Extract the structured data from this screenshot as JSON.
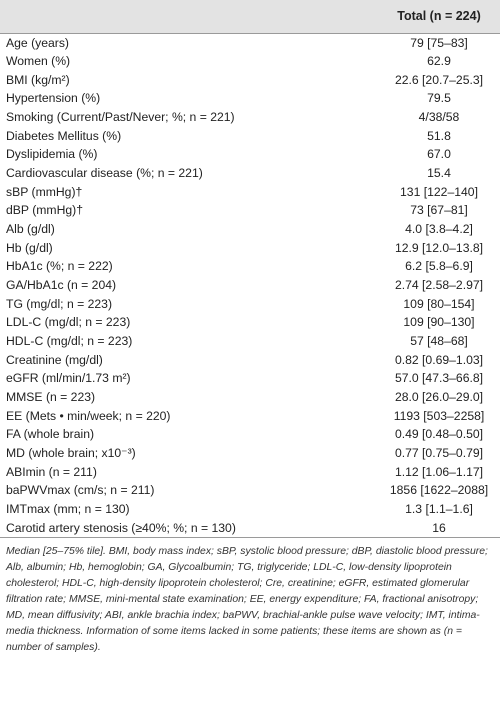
{
  "header": {
    "label_col": "",
    "total_label": "Total (n = 224)"
  },
  "rows": [
    {
      "label": "Age (years)",
      "value": "79 [75–83]"
    },
    {
      "label": "Women (%)",
      "value": "62.9"
    },
    {
      "label": "BMI (kg/m²)",
      "value": "22.6 [20.7–25.3]"
    },
    {
      "label": "Hypertension (%)",
      "value": "79.5"
    },
    {
      "label": "Smoking (Current/Past/Never; %; n = 221)",
      "value": "4/38/58"
    },
    {
      "label": "Diabetes Mellitus (%)",
      "value": "51.8"
    },
    {
      "label": "Dyslipidemia (%)",
      "value": "67.0"
    },
    {
      "label": "Cardiovascular disease (%; n = 221)",
      "value": "15.4"
    },
    {
      "label": "sBP (mmHg)†",
      "value": "131 [122–140]"
    },
    {
      "label": "dBP (mmHg)†",
      "value": "73 [67–81]"
    },
    {
      "label": "Alb (g/dl)",
      "value": "4.0 [3.8–4.2]"
    },
    {
      "label": "Hb (g/dl)",
      "value": "12.9 [12.0–13.8]"
    },
    {
      "label": "HbA1c (%; n = 222)",
      "value": "6.2 [5.8–6.9]"
    },
    {
      "label": "GA/HbA1c (n = 204)",
      "value": "2.74 [2.58–2.97]"
    },
    {
      "label": "TG (mg/dl; n = 223)",
      "value": "109 [80–154]"
    },
    {
      "label": "LDL-C (mg/dl; n = 223)",
      "value": "109 [90–130]"
    },
    {
      "label": "HDL-C (mg/dl; n = 223)",
      "value": "57 [48–68]"
    },
    {
      "label": "Creatinine (mg/dl)",
      "value": "0.82 [0.69–1.03]"
    },
    {
      "label": "eGFR (ml/min/1.73 m²)",
      "value": "57.0 [47.3–66.8]"
    },
    {
      "label": "MMSE (n = 223)",
      "value": "28.0 [26.0–29.0]"
    },
    {
      "label": "EE (Mets • min/week; n = 220)",
      "value": "1193 [503–2258]"
    },
    {
      "label": "FA (whole brain)",
      "value": "0.49 [0.48–0.50]"
    },
    {
      "label": "MD (whole brain; x10⁻³)",
      "value": "0.77 [0.75–0.79]"
    },
    {
      "label": "ABImin (n = 211)",
      "value": "1.12 [1.06–1.17]"
    },
    {
      "label": "baPWVmax (cm/s; n = 211)",
      "value": "1856 [1622–2088]"
    },
    {
      "label": "IMTmax (mm; n = 130)",
      "value": "1.3 [1.1–1.6]"
    },
    {
      "label": "Carotid artery stenosis (≥40%; %; n = 130)",
      "value": "16"
    }
  ],
  "footnote": "Median [25–75% tile]. BMI, body mass index; sBP, systolic blood pressure; dBP, diastolic blood pressure; Alb, albumin; Hb, hemoglobin; GA, Glycoalbumin; TG, triglyceride; LDL-C, low-density lipoprotein cholesterol; HDL-C, high-density lipoprotein cholesterol; Cre, creatinine; eGFR, estimated glomerular filtration rate; MMSE, mini-mental state examination; EE, energy expenditure; FA, fractional anisotropy; MD, mean diffusivity; ABI, ankle brachia index; baPWV, brachial-ankle pulse wave velocity; IMT, intima-media thickness. Information of some items lacked in some patients; these items are shown as (n = number of samples)."
}
